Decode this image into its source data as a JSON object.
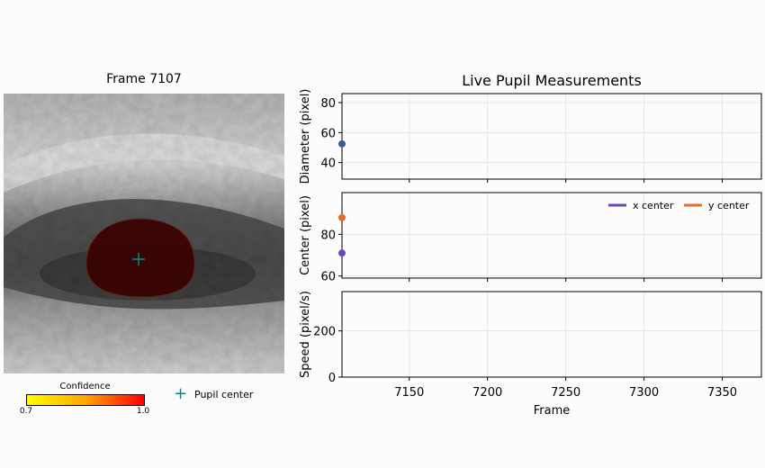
{
  "frame_panel": {
    "title": "Frame 7107",
    "colorbar_title": "Confidence",
    "colorbar_min": "0.7",
    "colorbar_max": "1.0",
    "colorbar_colors": [
      "#ffff00",
      "#ffa500",
      "#ff0000"
    ],
    "pupil_legend_label": "Pupil center",
    "pupil_marker_color": "#008b8b",
    "pupil_fill_color": "#3a0000"
  },
  "chart_data": {
    "type": "line",
    "title": "Live Pupil Measurements",
    "xlabel": "Frame",
    "xlim": [
      7107,
      7375
    ],
    "x_ticks": [
      7150,
      7200,
      7250,
      7300,
      7350
    ],
    "grid": true,
    "subplots": [
      {
        "ylabel": "Diameter (pixel)",
        "ylim": [
          29,
          86
        ],
        "y_ticks": [
          40,
          60,
          80
        ],
        "series": [
          {
            "color": "#3b5a9a",
            "x": [
              7107
            ],
            "y": [
              52.5
            ]
          }
        ]
      },
      {
        "ylabel": "Center (pixel)",
        "ylim": [
          59,
          100
        ],
        "y_ticks": [
          60,
          80
        ],
        "legend_position": "top-right",
        "series": [
          {
            "name": "x center",
            "color": "#6a48b4",
            "x": [
              7107
            ],
            "y": [
              71
            ]
          },
          {
            "name": "y center",
            "color": "#e07020",
            "x": [
              7107
            ],
            "y": [
              88
            ]
          }
        ]
      },
      {
        "ylabel": "Speed (pixel/s)",
        "ylim": [
          0,
          370
        ],
        "y_ticks": [
          0,
          200
        ],
        "series": []
      }
    ]
  }
}
